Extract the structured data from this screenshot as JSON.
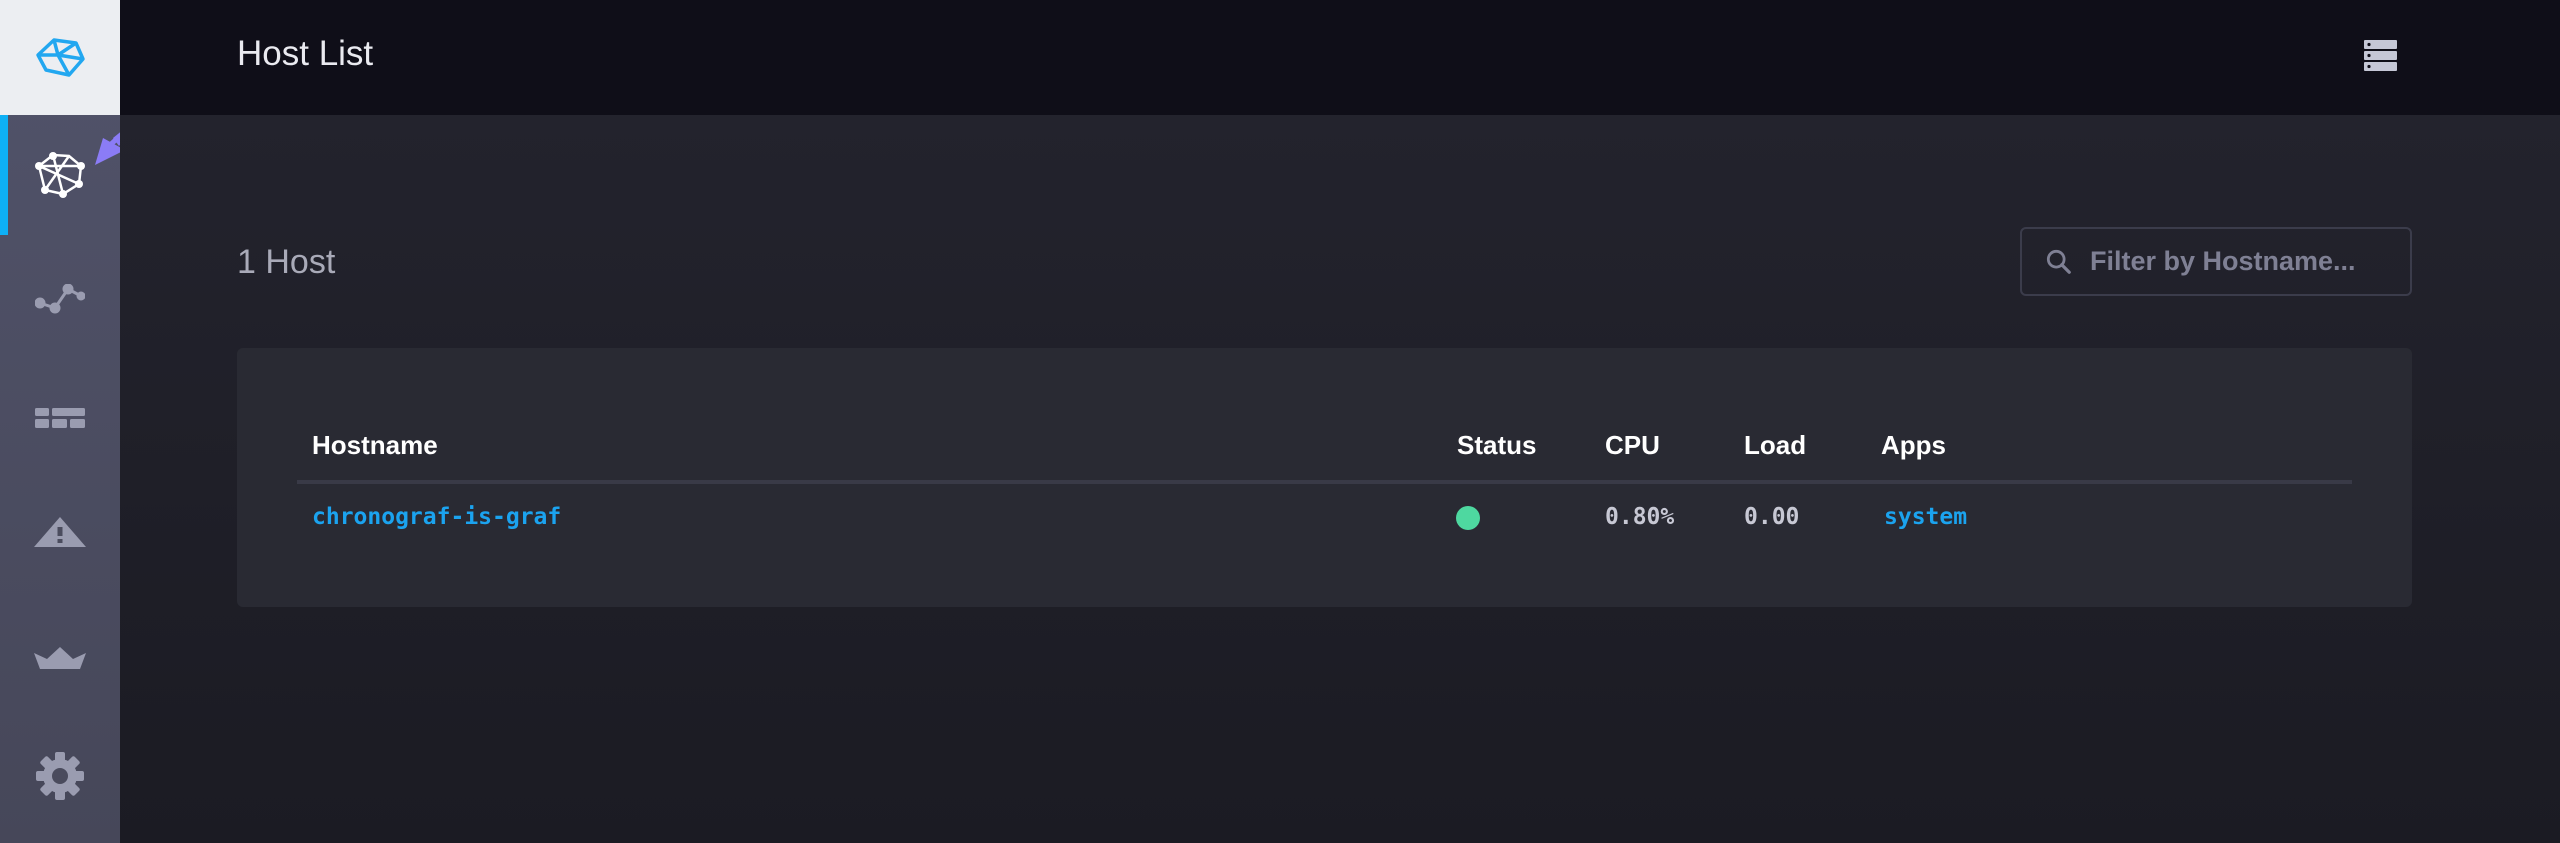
{
  "sidebar": {
    "logo_icon": "chronograf-logo-icon",
    "items": [
      {
        "name": "host-list",
        "icon": "graph-nodes-icon",
        "active": true
      },
      {
        "name": "data-explorer",
        "icon": "line-graph-icon"
      },
      {
        "name": "dashboards",
        "icon": "dashboard-grid-icon"
      },
      {
        "name": "alerting",
        "icon": "alert-triangle-icon"
      },
      {
        "name": "admin",
        "icon": "crown-icon"
      },
      {
        "name": "configuration",
        "icon": "gear-icon"
      }
    ]
  },
  "header": {
    "title": "Host List",
    "icon": "server-stack-icon"
  },
  "main": {
    "host_count": "1 Host",
    "filter": {
      "placeholder": "Filter by Hostname...",
      "value": ""
    },
    "table": {
      "columns": [
        "Hostname",
        "Status",
        "CPU",
        "Load",
        "Apps"
      ],
      "rows": [
        {
          "hostname": "chronograf-is-graf",
          "status": "online",
          "cpu": "0.80%",
          "load": "0.00",
          "apps": "system"
        }
      ]
    }
  },
  "colors": {
    "accent": "#0eb0f5",
    "status_online": "#4ed8a0",
    "link": "#1ba3ef",
    "annotation_arrow": "#8b7cf6"
  }
}
